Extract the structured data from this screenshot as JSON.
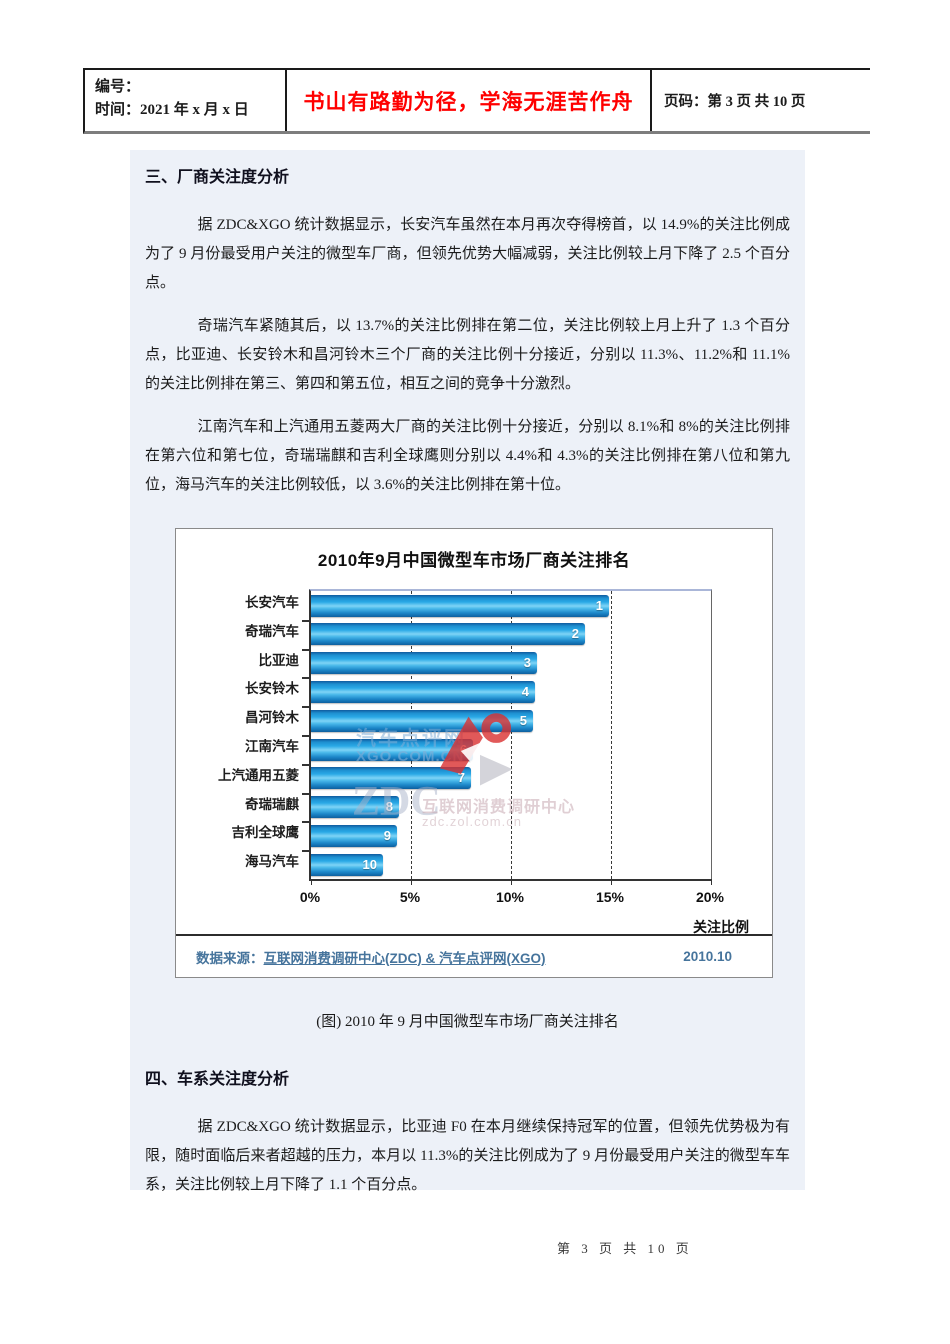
{
  "header": {
    "number_label": "编号：",
    "date_label": "时间：2021 年 x 月 x 日",
    "motto": "书山有路勤为径，学海无涯苦作舟",
    "page_label": "页码：第 3 页 共 10 页"
  },
  "colors": {
    "motto_red": "#ff0000",
    "bar_blue": "#29a9e0",
    "chart_footer_blue": "#46749c",
    "content_tint": "#edf1f8"
  },
  "sections": {
    "s3_title": "三、厂商关注度分析",
    "p1": "据 ZDC&XGO 统计数据显示，长安汽车虽然在本月再次夺得榜首，以 14.9%的关注比例成为了 9 月份最受用户关注的微型车厂商，但领先优势大幅减弱，关注比例较上月下降了 2.5 个百分点。",
    "p2": "奇瑞汽车紧随其后，以 13.7%的关注比例排在第二位，关注比例较上月上升了 1.3 个百分点，比亚迪、长安铃木和昌河铃木三个厂商的关注比例十分接近，分别以 11.3%、11.2%和 11.1%的关注比例排在第三、第四和第五位，相互之间的竞争十分激烈。",
    "p3": "江南汽车和上汽通用五菱两大厂商的关注比例十分接近，分别以 8.1%和 8%的关注比例排在第六位和第七位，奇瑞瑞麒和吉利全球鹰则分别以 4.4%和 4.3%的关注比例排在第八位和第九位，海马汽车的关注比例较低，以 3.6%的关注比例排在第十位。",
    "caption": "(图) 2010 年 9 月中国微型车市场厂商关注排名",
    "s4_title": "四、车系关注度分析",
    "p4": "据 ZDC&XGO 统计数据显示，比亚迪 F0 在本月继续保持冠军的位置，但领先优势极为有限，随时面临后来者超越的压力，本月以 11.3%的关注比例成为了 9 月份最受用户关注的微型车车系，关注比例较上月下降了 1.1 个百分点。"
  },
  "chart_data": {
    "type": "bar",
    "orientation": "horizontal",
    "title": "2010年9月中国微型车市场厂商关注排名",
    "categories": [
      "长安汽车",
      "奇瑞汽车",
      "比亚迪",
      "长安铃木",
      "昌河铃木",
      "江南汽车",
      "上汽通用五菱",
      "奇瑞瑞麒",
      "吉利全球鹰",
      "海马汽车"
    ],
    "values": [
      14.9,
      13.7,
      11.3,
      11.2,
      11.1,
      8.1,
      8.0,
      4.4,
      4.3,
      3.6
    ],
    "ranks": [
      "1",
      "2",
      "3",
      "4",
      "5",
      "6",
      "7",
      "8",
      "9",
      "10"
    ],
    "xlabel": "关注比例",
    "x_ticks": [
      "0%",
      "5%",
      "10%",
      "15%",
      "20%"
    ],
    "xlim": [
      0,
      20
    ],
    "gridlines_percent": [
      5,
      10,
      15
    ],
    "grid": "dashed-vertical",
    "legend": "none",
    "source_prefix": "数据来源：",
    "source_link": "互联网消费调研中心(ZDC) & 汽车点评网(XGO)",
    "period": "2010.10",
    "watermarks": {
      "xgo_cn": "汽车点评网",
      "xgo_url": "XGO.COM.CN",
      "zdc": "ZDC",
      "zdc_cn": "互联网消费调研中心",
      "zdc_url": "zdc.zol.com.cn"
    }
  },
  "page_footer": "第 3 页 共 10 页"
}
